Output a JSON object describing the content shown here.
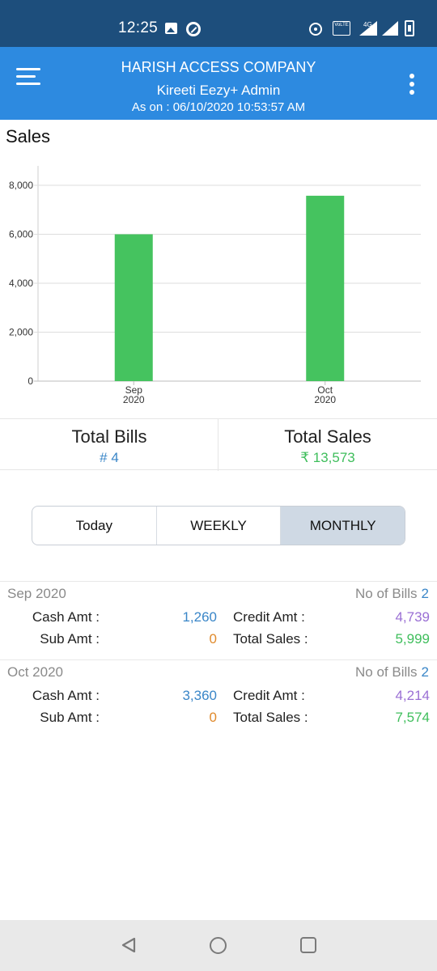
{
  "status_bar": {
    "time": "12:25",
    "volte_label": "VoLTE",
    "network_label": "4G",
    "icons": [
      "image-icon",
      "circle-icon",
      "hotspot-icon",
      "volte-icon",
      "signal-icon",
      "signal-icon",
      "battery-icon"
    ]
  },
  "header": {
    "company": "HARISH ACCESS COMPANY",
    "user": "Kireeti Eezy+ Admin",
    "as_on": "As on : 06/10/2020 10:53:57 AM",
    "menu_icon": "hamburger-menu-icon",
    "more_icon": "kebab-menu-icon",
    "background": "#2d8ae0"
  },
  "section_title": "Sales",
  "chart_data": {
    "type": "bar",
    "categories": [
      "Sep\n2020",
      "Oct\n2020"
    ],
    "category_lines": [
      [
        "Sep",
        "2020"
      ],
      [
        "Oct",
        "2020"
      ]
    ],
    "values": [
      5999,
      7574
    ],
    "ylim": [
      0,
      8000
    ],
    "yticks": [
      0,
      2000,
      4000,
      6000,
      8000
    ],
    "ytick_labels": [
      "0",
      "2,000",
      "4,000",
      "6,000",
      "8,000"
    ],
    "bar_color": "#45c35f",
    "grid": true,
    "legend": "none",
    "title": "",
    "xlabel": "",
    "ylabel": ""
  },
  "totals": {
    "bills_title": "Total Bills",
    "bills_value": "# 4",
    "sales_title": "Total Sales",
    "sales_value": "₹ 13,573"
  },
  "tabs": [
    {
      "label": "Today",
      "active": false
    },
    {
      "label": "WEEKLY",
      "active": false
    },
    {
      "label": "MONTHLY",
      "active": true
    }
  ],
  "records": [
    {
      "month": "Sep 2020",
      "bills_label": "No of Bills",
      "bills_count": "2",
      "cash_label": "Cash Amt :",
      "cash_value": "1,260",
      "sub_label": "Sub Amt :",
      "sub_value": "0",
      "credit_label": "Credit Amt :",
      "credit_value": "4,739",
      "total_label": "Total Sales :",
      "total_value": "5,999"
    },
    {
      "month": "Oct 2020",
      "bills_label": "No of Bills",
      "bills_count": "2",
      "cash_label": "Cash Amt :",
      "cash_value": "3,360",
      "sub_label": "Sub Amt :",
      "sub_value": "0",
      "credit_label": "Credit Amt :",
      "credit_value": "4,214",
      "total_label": "Total Sales :",
      "total_value": "7,574"
    }
  ],
  "nav_bar": {
    "icons": [
      "back-icon",
      "home-icon",
      "recent-apps-icon"
    ]
  }
}
